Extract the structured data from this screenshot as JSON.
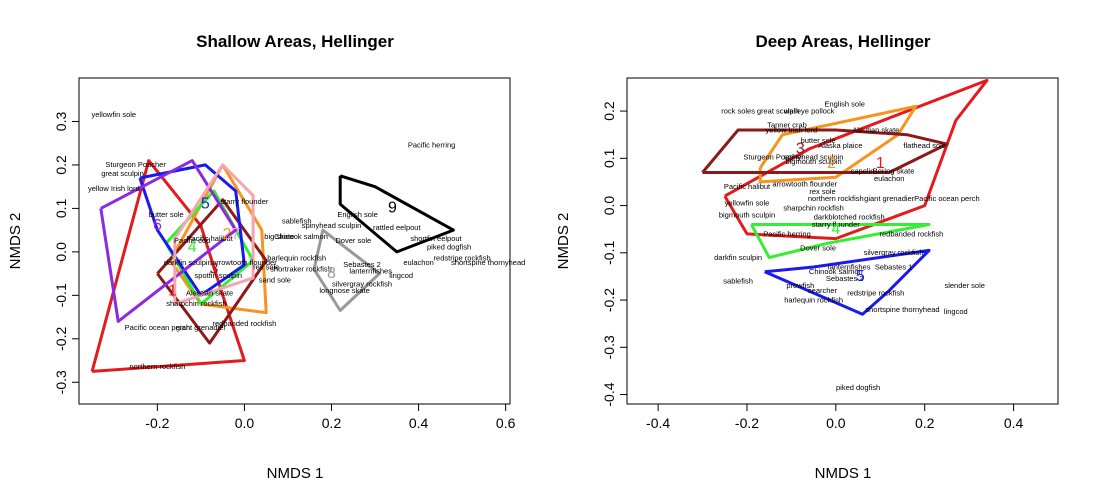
{
  "chart_data": [
    {
      "type": "scatter",
      "title": "Shallow Areas, Hellinger",
      "xlabel": "NMDS 1",
      "ylabel": "NMDS 2",
      "xlim": [
        -0.38,
        0.61
      ],
      "ylim": [
        -0.35,
        0.4
      ],
      "xticks": [
        "-0.2",
        "0.0",
        "0.2",
        "0.4",
        "0.6"
      ],
      "yticks": [
        "-0.3",
        "-0.2",
        "-0.1",
        "0.0",
        "0.1",
        "0.2",
        "0.3"
      ],
      "xtick_values": [
        -0.2,
        0.0,
        0.2,
        0.4,
        0.6
      ],
      "ytick_values": [
        -0.3,
        -0.2,
        -0.1,
        0.0,
        0.1,
        0.2,
        0.3
      ],
      "species": [
        {
          "label": "yellowfin sole",
          "x": -0.3,
          "y": 0.31
        },
        {
          "label": "Pacific herring",
          "x": 0.43,
          "y": 0.24
        },
        {
          "label": "Sturgeon Poacher",
          "x": -0.25,
          "y": 0.195
        },
        {
          "label": "great sculpin",
          "x": -0.28,
          "y": 0.175
        },
        {
          "label": "yellow Irish lord",
          "x": -0.3,
          "y": 0.14
        },
        {
          "label": "starry flounder",
          "x": 0.0,
          "y": 0.11
        },
        {
          "label": "butter sole",
          "x": -0.18,
          "y": 0.08
        },
        {
          "label": "sablefish",
          "x": 0.12,
          "y": 0.065
        },
        {
          "label": "English sole",
          "x": 0.26,
          "y": 0.08
        },
        {
          "label": "spinyhead sculpin",
          "x": 0.2,
          "y": 0.055
        },
        {
          "label": "Chinook salmon",
          "x": 0.13,
          "y": 0.03
        },
        {
          "label": "big skate",
          "x": 0.08,
          "y": 0.03
        },
        {
          "label": "Dover sole",
          "x": 0.25,
          "y": 0.02
        },
        {
          "label": "rattled eelpout",
          "x": 0.35,
          "y": 0.05
        },
        {
          "label": "shortfin eelpout",
          "x": 0.44,
          "y": 0.025
        },
        {
          "label": "piked dogfish",
          "x": 0.47,
          "y": 0.005
        },
        {
          "label": "Sebastes 2",
          "x": 0.27,
          "y": -0.035
        },
        {
          "label": "redstripe rockfish",
          "x": 0.5,
          "y": -0.02
        },
        {
          "label": "shortspine thornyhead",
          "x": 0.56,
          "y": -0.03
        },
        {
          "label": "eulachon",
          "x": 0.4,
          "y": -0.03
        },
        {
          "label": "harlequin rockfish",
          "x": 0.12,
          "y": -0.02
        },
        {
          "label": "shortraker rockfish",
          "x": 0.13,
          "y": -0.045
        },
        {
          "label": "lanternfishes",
          "x": 0.29,
          "y": -0.05
        },
        {
          "label": "lingcod",
          "x": 0.36,
          "y": -0.06
        },
        {
          "label": "silvergray rockfish",
          "x": 0.27,
          "y": -0.08
        },
        {
          "label": "longnose skate",
          "x": 0.23,
          "y": -0.095
        },
        {
          "label": "rex sole",
          "x": 0.05,
          "y": -0.04
        },
        {
          "label": "arrowtooth flounder",
          "x": 0.0,
          "y": -0.03
        },
        {
          "label": "Pacific cod",
          "x": -0.12,
          "y": 0.02
        },
        {
          "label": "darkfin sculpin",
          "x": -0.13,
          "y": -0.03
        },
        {
          "label": "spotfin sculpin",
          "x": -0.06,
          "y": -0.06
        },
        {
          "label": "sand sole",
          "x": 0.07,
          "y": -0.07
        },
        {
          "label": "Aleutian skate",
          "x": -0.08,
          "y": -0.1
        },
        {
          "label": "sharpchin rockfish",
          "x": -0.11,
          "y": -0.125
        },
        {
          "label": "redbanded rockfish",
          "x": 0.0,
          "y": -0.17
        },
        {
          "label": "Pacific ocean perch",
          "x": -0.2,
          "y": -0.18
        },
        {
          "label": "giant grenadier",
          "x": -0.1,
          "y": -0.18
        },
        {
          "label": "northern rockfish",
          "x": -0.2,
          "y": -0.27
        },
        {
          "label": "Pacific halibut",
          "x": -0.08,
          "y": 0.025
        }
      ],
      "clusters": [
        {
          "label": "1",
          "color": "#e41a1c",
          "x": -0.165,
          "y": -0.1,
          "hull": [
            [
              -0.35,
              -0.275
            ],
            [
              -0.22,
              0.21
            ],
            [
              -0.1,
              0.06
            ],
            [
              -0.05,
              -0.1
            ],
            [
              0.0,
              -0.25
            ],
            [
              -0.35,
              -0.275
            ]
          ]
        },
        {
          "label": "2",
          "color": "#f7941d",
          "x": -0.04,
          "y": 0.03,
          "hull": [
            [
              -0.17,
              -0.02
            ],
            [
              -0.05,
              0.2
            ],
            [
              0.04,
              0.05
            ],
            [
              0.05,
              -0.14
            ],
            [
              -0.1,
              -0.12
            ],
            [
              -0.17,
              -0.02
            ]
          ]
        },
        {
          "label": "3",
          "color": "#8b1a1a",
          "x": -0.07,
          "y": -0.05,
          "hull": [
            [
              -0.2,
              -0.05
            ],
            [
              -0.05,
              0.12
            ],
            [
              0.05,
              -0.02
            ],
            [
              -0.08,
              -0.21
            ],
            [
              -0.2,
              -0.05
            ]
          ]
        },
        {
          "label": "4",
          "color": "#33ee33",
          "x": -0.12,
          "y": 0.0,
          "hull": [
            [
              -0.18,
              0.02
            ],
            [
              -0.07,
              0.14
            ],
            [
              0.02,
              -0.02
            ],
            [
              -0.1,
              -0.12
            ],
            [
              -0.18,
              0.02
            ]
          ]
        },
        {
          "label": "5",
          "color": "#1a1aee",
          "x": -0.09,
          "y": 0.1,
          "hull": [
            [
              -0.24,
              0.17
            ],
            [
              -0.09,
              0.2
            ],
            [
              -0.02,
              0.14
            ],
            [
              0.0,
              -0.03
            ],
            [
              -0.1,
              -0.1
            ],
            [
              -0.2,
              0.05
            ],
            [
              -0.24,
              0.17
            ]
          ]
        },
        {
          "label": "6",
          "color": "#8a2be2",
          "x": -0.2,
          "y": 0.05,
          "hull": [
            [
              -0.33,
              0.1
            ],
            [
              -0.12,
              0.21
            ],
            [
              -0.02,
              0.05
            ],
            [
              -0.29,
              -0.16
            ],
            [
              -0.33,
              0.1
            ]
          ]
        },
        {
          "label": "7",
          "color": "#f4a6b0",
          "x": -0.02,
          "y": 0.03,
          "hull": [
            [
              -0.16,
              0.03
            ],
            [
              -0.05,
              0.2
            ],
            [
              0.02,
              0.13
            ],
            [
              0.02,
              -0.06
            ],
            [
              -0.16,
              -0.12
            ],
            [
              -0.16,
              0.03
            ]
          ]
        },
        {
          "label": "8",
          "color": "#999999",
          "x": 0.2,
          "y": -0.06,
          "hull": [
            [
              0.16,
              -0.04
            ],
            [
              0.18,
              0.05
            ],
            [
              0.31,
              -0.05
            ],
            [
              0.22,
              -0.135
            ],
            [
              0.16,
              -0.04
            ]
          ]
        },
        {
          "label": "9",
          "color": "#000000",
          "x": 0.34,
          "y": 0.09,
          "hull": [
            [
              0.22,
              0.175
            ],
            [
              0.22,
              0.11
            ],
            [
              0.35,
              0.0
            ],
            [
              0.48,
              0.05
            ],
            [
              0.3,
              0.15
            ],
            [
              0.22,
              0.175
            ]
          ]
        }
      ]
    },
    {
      "type": "scatter",
      "title": "Deep Areas, Hellinger",
      "xlabel": "NMDS 1",
      "ylabel": "NMDS 2",
      "xlim": [
        -0.47,
        0.5
      ],
      "ylim": [
        -0.42,
        0.27
      ],
      "xticks": [
        "-0.4",
        "-0.2",
        "0.0",
        "0.2",
        "0.4"
      ],
      "yticks": [
        "-0.4",
        "-0.3",
        "-0.2",
        "-0.1",
        "0.0",
        "0.1",
        "0.2"
      ],
      "xtick_values": [
        -0.4,
        -0.2,
        0.0,
        0.2,
        0.4
      ],
      "ytick_values": [
        -0.4,
        -0.3,
        -0.2,
        -0.1,
        0.0,
        0.1,
        0.2
      ],
      "species": [
        {
          "label": "English sole",
          "x": 0.02,
          "y": 0.21
        },
        {
          "label": "rock soles",
          "x": -0.22,
          "y": 0.195
        },
        {
          "label": "great sculpin",
          "x": -0.13,
          "y": 0.195
        },
        {
          "label": "walleye pollock",
          "x": -0.06,
          "y": 0.195
        },
        {
          "label": "Tanner crab",
          "x": -0.11,
          "y": 0.165
        },
        {
          "label": "yellow Irish lord",
          "x": -0.1,
          "y": 0.155
        },
        {
          "label": "Aleutian skate",
          "x": 0.09,
          "y": 0.155
        },
        {
          "label": "butter sole",
          "x": -0.04,
          "y": 0.132
        },
        {
          "label": "Alaska plaice",
          "x": 0.01,
          "y": 0.122
        },
        {
          "label": "flathead sole",
          "x": 0.2,
          "y": 0.122
        },
        {
          "label": "Sturgeon Poacher",
          "x": -0.14,
          "y": 0.098
        },
        {
          "label": "spinyhead sculpin",
          "x": -0.05,
          "y": 0.098
        },
        {
          "label": "bigmouth sculpin",
          "x": -0.05,
          "y": 0.088
        },
        {
          "label": "capelin",
          "x": 0.06,
          "y": 0.068
        },
        {
          "label": "Bering skate",
          "x": 0.13,
          "y": 0.068
        },
        {
          "label": "eulachon",
          "x": 0.12,
          "y": 0.052
        },
        {
          "label": "Pacific halibut",
          "x": -0.2,
          "y": 0.035
        },
        {
          "label": "arrowtooth flounder",
          "x": -0.07,
          "y": 0.04
        },
        {
          "label": "rex sole",
          "x": -0.03,
          "y": 0.025
        },
        {
          "label": "northern rockfish",
          "x": 0.0,
          "y": 0.01
        },
        {
          "label": "giant grenadier",
          "x": 0.12,
          "y": 0.01
        },
        {
          "label": "Pacific ocean perch",
          "x": 0.25,
          "y": 0.01
        },
        {
          "label": "yellowfin sole",
          "x": -0.2,
          "y": 0.0
        },
        {
          "label": "sharpchin rockfish",
          "x": -0.05,
          "y": -0.01
        },
        {
          "label": "bigmouth sculpin",
          "x": -0.2,
          "y": -0.025
        },
        {
          "label": "darkblotched rockfish",
          "x": 0.03,
          "y": -0.03
        },
        {
          "label": "starry flounder",
          "x": 0.0,
          "y": -0.045
        },
        {
          "label": "Pacific herring",
          "x": -0.11,
          "y": -0.065
        },
        {
          "label": "redbanded rockfish",
          "x": 0.17,
          "y": -0.065
        },
        {
          "label": "Dover sole",
          "x": -0.04,
          "y": -0.095
        },
        {
          "label": "silvergray rockfish",
          "x": 0.13,
          "y": -0.105
        },
        {
          "label": "darkfin sculpin",
          "x": -0.22,
          "y": -0.115
        },
        {
          "label": "lanternfishes",
          "x": 0.03,
          "y": -0.135
        },
        {
          "label": "Sebastes 1",
          "x": 0.13,
          "y": -0.135
        },
        {
          "label": "Chinook salmon",
          "x": 0.0,
          "y": -0.145
        },
        {
          "label": "Sebastes 2",
          "x": 0.02,
          "y": -0.16
        },
        {
          "label": "sablefish",
          "x": -0.22,
          "y": -0.165
        },
        {
          "label": "prowfish",
          "x": -0.08,
          "y": -0.175
        },
        {
          "label": "searcher",
          "x": -0.03,
          "y": -0.185
        },
        {
          "label": "redstripe rockfish",
          "x": 0.09,
          "y": -0.19
        },
        {
          "label": "slender sole",
          "x": 0.29,
          "y": -0.175
        },
        {
          "label": "harlequin rockfish",
          "x": -0.05,
          "y": -0.205
        },
        {
          "label": "shortspine thornyhead",
          "x": 0.15,
          "y": -0.225
        },
        {
          "label": "lingcod",
          "x": 0.27,
          "y": -0.23
        },
        {
          "label": "piked dogfish",
          "x": 0.05,
          "y": -0.39
        }
      ],
      "clusters": [
        {
          "label": "1",
          "color": "#e41a1c",
          "x": 0.1,
          "y": 0.08,
          "hull": [
            [
              -0.25,
              0.02
            ],
            [
              -0.06,
              0.12
            ],
            [
              0.34,
              0.265
            ],
            [
              0.27,
              0.18
            ],
            [
              0.2,
              0.0
            ],
            [
              0.0,
              -0.07
            ],
            [
              -0.2,
              -0.06
            ],
            [
              -0.25,
              0.02
            ]
          ]
        },
        {
          "label": "2",
          "color": "#f7941d",
          "x": -0.01,
          "y": 0.08,
          "hull": [
            [
              -0.17,
              0.08
            ],
            [
              -0.12,
              0.15
            ],
            [
              0.18,
              0.21
            ],
            [
              0.14,
              0.15
            ],
            [
              0.0,
              0.06
            ],
            [
              -0.17,
              0.05
            ],
            [
              -0.17,
              0.08
            ]
          ]
        },
        {
          "label": "3",
          "color": "#8b1a1a",
          "x": -0.08,
          "y": 0.11,
          "hull": [
            [
              -0.3,
              0.07
            ],
            [
              -0.22,
              0.16
            ],
            [
              0.0,
              0.16
            ],
            [
              0.16,
              0.15
            ],
            [
              0.25,
              0.13
            ],
            [
              0.12,
              0.07
            ],
            [
              -0.3,
              0.07
            ]
          ]
        },
        {
          "label": "4",
          "color": "#33ee33",
          "x": 0.0,
          "y": -0.06,
          "hull": [
            [
              -0.19,
              -0.04
            ],
            [
              0.04,
              -0.04
            ],
            [
              0.21,
              -0.04
            ],
            [
              -0.02,
              -0.08
            ],
            [
              -0.15,
              -0.11
            ],
            [
              -0.19,
              -0.04
            ]
          ]
        },
        {
          "label": "5",
          "color": "#1a1aee",
          "x": 0.055,
          "y": -0.16,
          "hull": [
            [
              -0.16,
              -0.14
            ],
            [
              -0.05,
              -0.13
            ],
            [
              0.21,
              -0.095
            ],
            [
              0.12,
              -0.18
            ],
            [
              0.06,
              -0.23
            ],
            [
              -0.16,
              -0.14
            ]
          ]
        }
      ]
    }
  ]
}
